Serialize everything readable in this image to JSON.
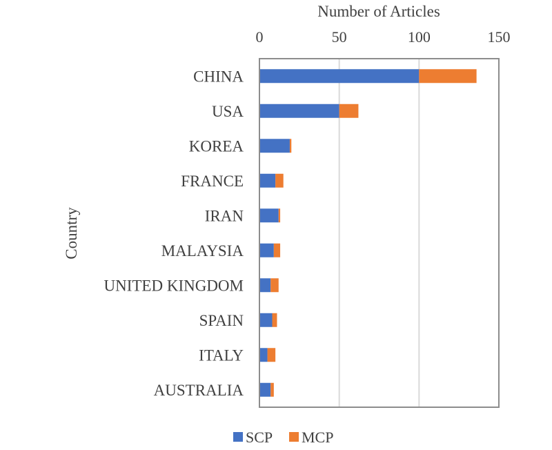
{
  "chart_data": {
    "type": "bar",
    "orientation": "horizontal",
    "stacked": true,
    "xlabel": "Number of Articles",
    "ylabel": "Country",
    "xlim": [
      0,
      150
    ],
    "xticks": [
      "0",
      "50",
      "100",
      "150"
    ],
    "x_axis_position": "top",
    "grid": true,
    "legend_position": "bottom",
    "categories": [
      "CHINA",
      "USA",
      "KOREA",
      "FRANCE",
      "IRAN",
      "MALAYSIA",
      "UNITED KINGDOM",
      "SPAIN",
      "ITALY",
      "AUSTRALIA"
    ],
    "series": [
      {
        "name": "SCP",
        "color": "#4472C4",
        "values": [
          100,
          50,
          19,
          10,
          12,
          9,
          7,
          8,
          5,
          7
        ]
      },
      {
        "name": "MCP",
        "color": "#ED7D31",
        "values": [
          36,
          12,
          1,
          5,
          1,
          4,
          5,
          3,
          5,
          2
        ]
      }
    ]
  }
}
